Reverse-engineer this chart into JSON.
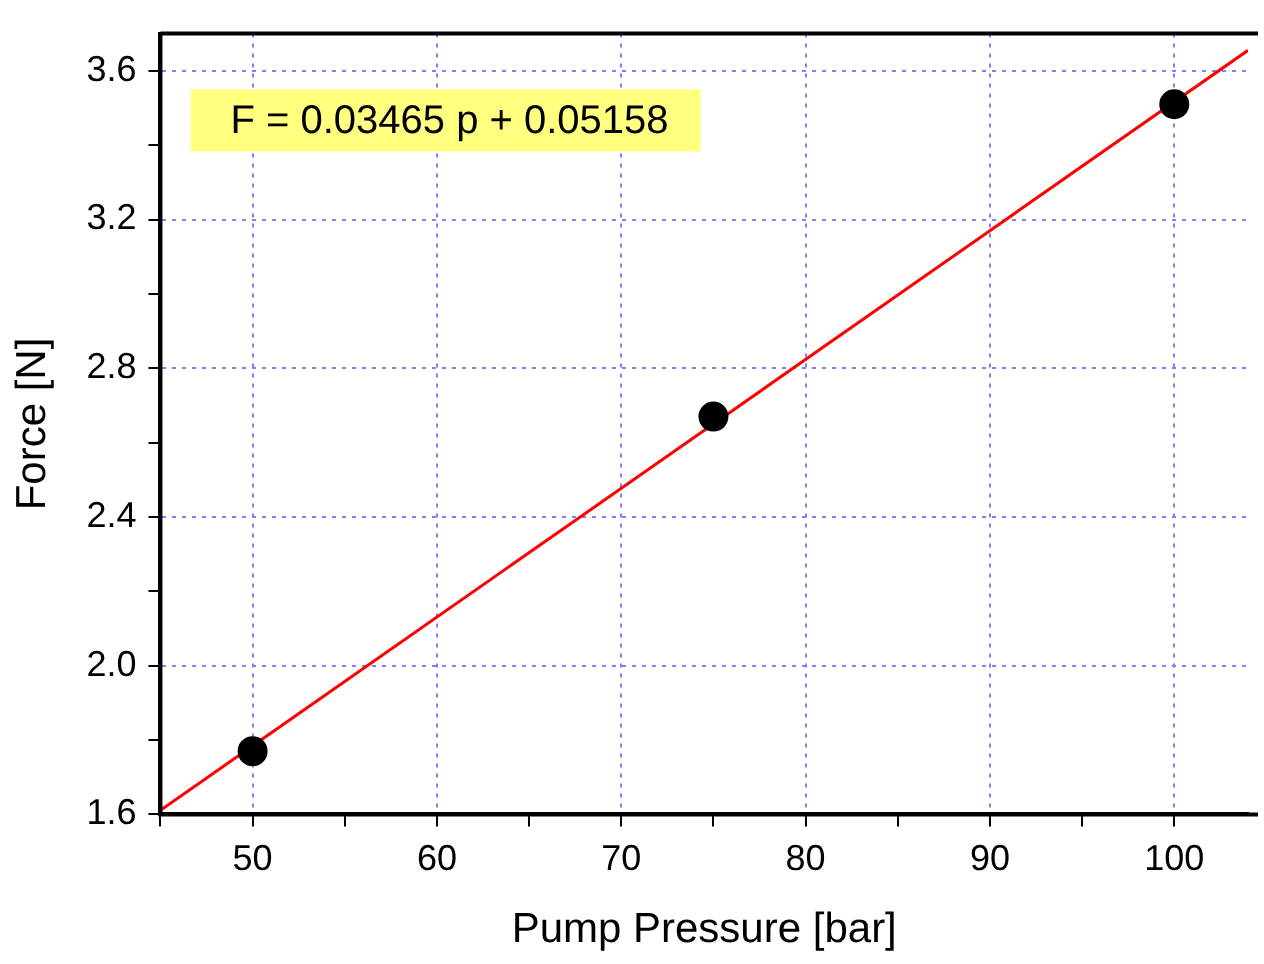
{
  "chart_data": {
    "type": "scatter",
    "xlabel": "Pump Pressure [bar]",
    "ylabel": "Force [N]",
    "annotations": [
      "F = 0.03465 p + 0.05158"
    ],
    "xlim": [
      45,
      104
    ],
    "ylim": [
      1.6,
      3.7
    ],
    "xticks": [
      {
        "value": 45,
        "label": null
      },
      50,
      {
        "value": 55,
        "label": null
      },
      60,
      {
        "value": 65,
        "label": null
      },
      70,
      {
        "value": 75,
        "label": null
      },
      80,
      {
        "value": 85,
        "label": null
      },
      90,
      {
        "value": 95,
        "label": null
      },
      100
    ],
    "yticks": [
      1.6,
      {
        "value": 1.8,
        "label": null
      },
      {
        "value": 2,
        "label": "2.0"
      },
      {
        "value": 2.2,
        "label": null
      },
      2.4,
      {
        "value": 2.6,
        "label": null
      },
      2.8,
      {
        "value": 3.0,
        "label": null
      },
      3.2,
      {
        "value": 3.4,
        "label": null
      },
      3.6
    ],
    "grid": true,
    "legend": false,
    "series": [
      {
        "color": "#000000",
        "marker": "circle",
        "x": [
          50,
          75,
          100
        ],
        "values": [
          1.77,
          2.67,
          3.51
        ]
      },
      {
        "type": "line",
        "marker": "none",
        "color": "#ff0000",
        "x": [
          45,
          104
        ],
        "values": [
          1.611,
          3.655
        ]
      }
    ]
  }
}
